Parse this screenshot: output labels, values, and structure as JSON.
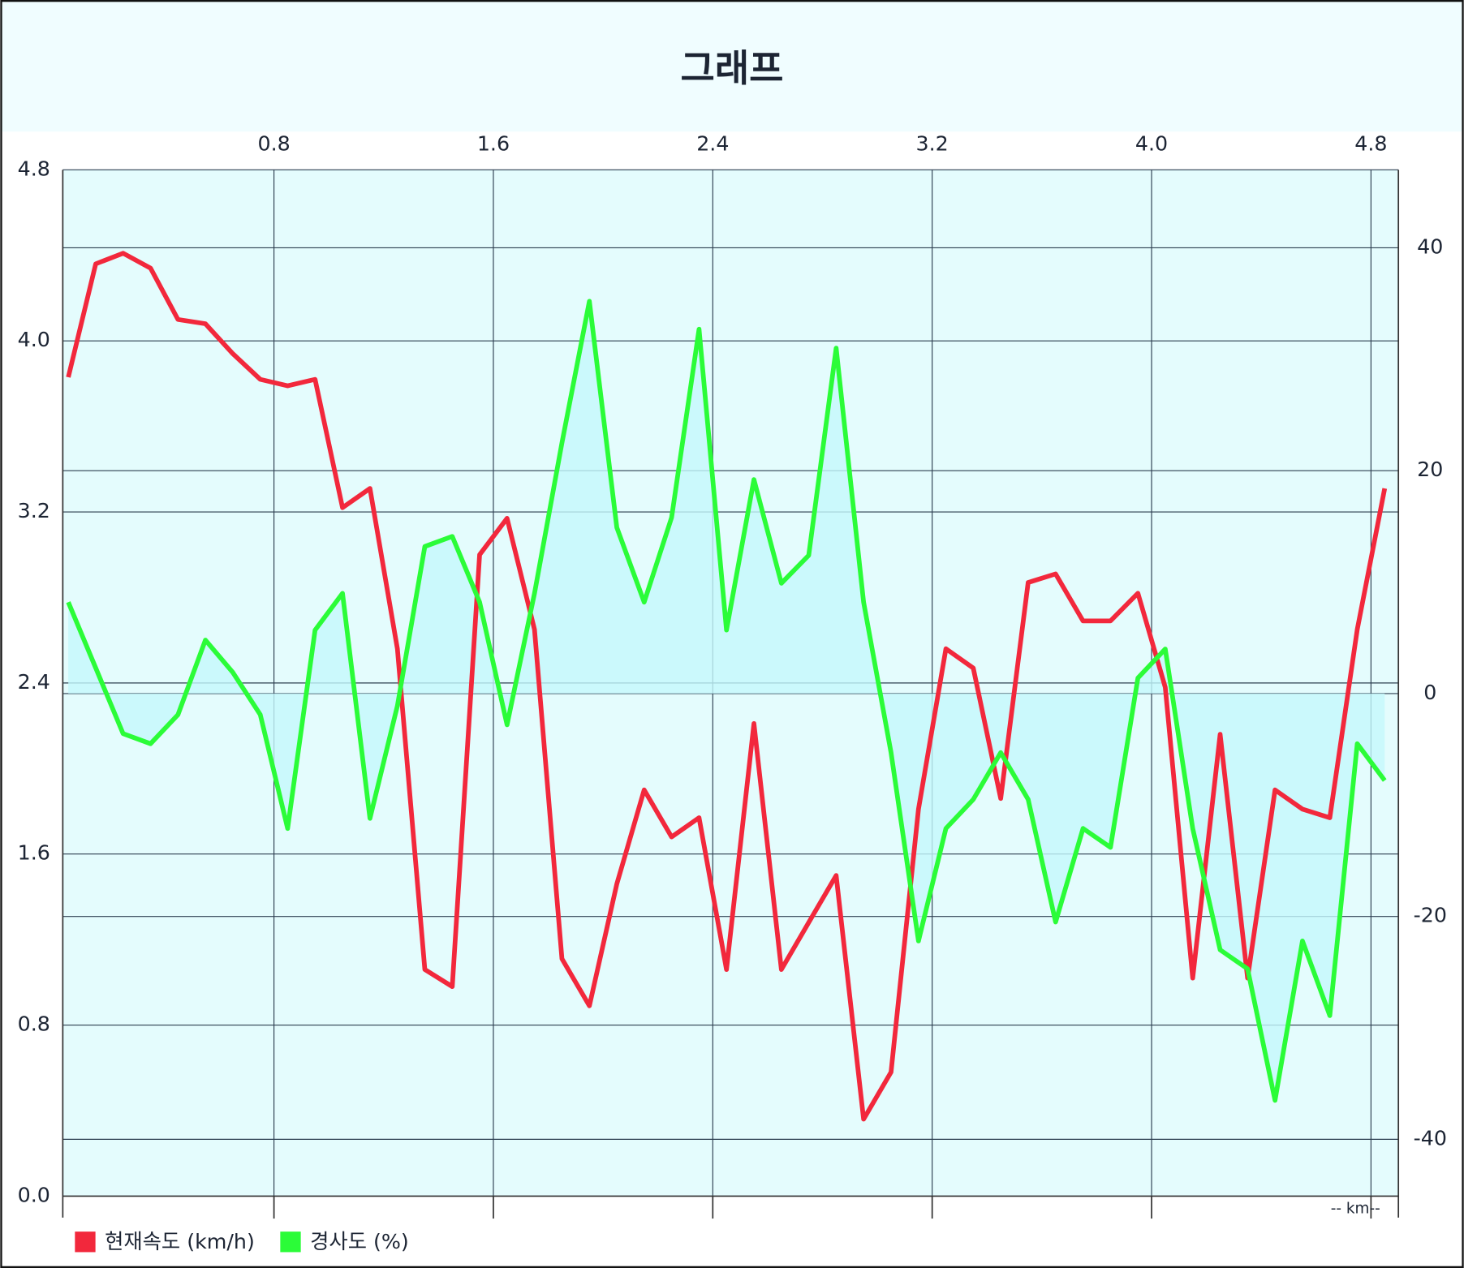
{
  "chart_data": {
    "type": "line",
    "title": "그래프",
    "x_label": "-- km--",
    "x": [
      0.05,
      0.15,
      0.25,
      0.35,
      0.45,
      0.55,
      0.65,
      0.75,
      0.85,
      0.95,
      1.05,
      1.15,
      1.25,
      1.35,
      1.45,
      1.55,
      1.65,
      1.75,
      1.85,
      1.95,
      2.05,
      2.15,
      2.25,
      2.35,
      2.45,
      2.55,
      2.65,
      2.75,
      2.85,
      2.95,
      3.05,
      3.15,
      3.25,
      3.35,
      3.45,
      3.55,
      3.65,
      3.75,
      3.85,
      3.95,
      4.05,
      4.15,
      4.25,
      4.35,
      4.45,
      4.55,
      4.65,
      4.75,
      4.85
    ],
    "series": [
      {
        "name": "현재속도 (km/h)",
        "color": "#f2283c",
        "values": [
          3.83,
          4.36,
          4.41,
          4.34,
          4.1,
          4.08,
          3.94,
          3.82,
          3.79,
          3.82,
          3.22,
          3.31,
          2.56,
          1.06,
          0.98,
          3.0,
          3.17,
          2.65,
          1.11,
          0.89,
          1.46,
          1.9,
          1.68,
          1.77,
          1.06,
          2.21,
          1.06,
          1.28,
          1.5,
          0.36,
          0.58,
          1.81,
          2.56,
          2.47,
          1.86,
          2.87,
          2.91,
          2.69,
          2.69,
          2.82,
          2.38,
          1.02,
          2.16,
          1.02,
          1.9,
          1.81,
          1.77,
          2.65,
          3.31
        ]
      },
      {
        "name": "경사도 (%)",
        "color": "#2bfc38",
        "axis": "y2",
        "values": [
          8.2,
          2.3,
          -3.6,
          -4.5,
          -1.9,
          4.8,
          1.9,
          -1.9,
          -12.1,
          5.7,
          9.0,
          -11.2,
          -1.1,
          13.2,
          14.1,
          8.2,
          -2.8,
          9.0,
          22.5,
          35.2,
          14.9,
          8.2,
          15.8,
          32.7,
          5.7,
          19.2,
          9.9,
          12.4,
          31.0,
          8.2,
          -5.3,
          -22.2,
          -12.1,
          -9.5,
          -5.3,
          -9.5,
          -20.5,
          -12.1,
          -13.8,
          1.4,
          4.0,
          -12.1,
          -23.0,
          -24.7,
          -36.5,
          -22.2,
          -28.9,
          -4.5,
          -7.8
        ]
      }
    ],
    "xlim": [
      0.03,
      4.9
    ],
    "xticks": [
      0.8,
      1.6,
      2.4,
      3.2,
      {
        "value": 4,
        "label": "4.0"
      },
      4.8
    ],
    "ylim": [
      0,
      4.8
    ],
    "yticks": [
      {
        "value": 0,
        "label": "0.0"
      },
      0.8,
      1.6,
      2.4,
      3.2,
      {
        "value": 4,
        "label": "4.0"
      },
      4.8
    ],
    "y2lim": [
      -45.1,
      47.0
    ],
    "y2ticks": [
      -40,
      -20,
      0,
      20,
      40
    ],
    "grid": true,
    "legend": "bottom-left"
  }
}
